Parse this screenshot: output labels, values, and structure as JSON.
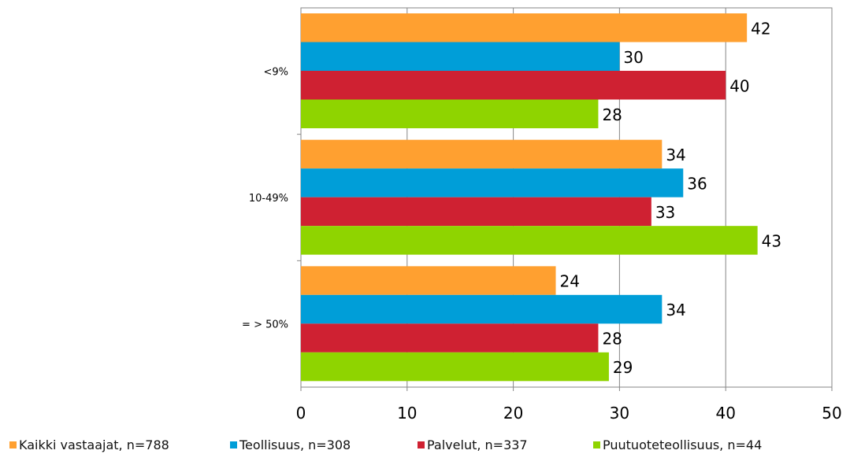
{
  "chart_data": {
    "type": "bar",
    "orientation": "horizontal",
    "categories": [
      "<9%",
      "10-49%",
      "= > 50%"
    ],
    "series": [
      {
        "name": "Kaikki vastaajat, n=788",
        "color": "#ffa030",
        "values": [
          42,
          34,
          24
        ],
        "labels": [
          "42",
          "34",
          "24"
        ]
      },
      {
        "name": "Teollisuus, n=308",
        "color": "#009ed8",
        "values": [
          30,
          36,
          34
        ],
        "labels": [
          "30",
          "36",
          "34"
        ]
      },
      {
        "name": "Palvelut, n=337",
        "color": "#cf2132",
        "values": [
          40,
          33,
          28
        ],
        "labels": [
          "40",
          "33",
          "28"
        ]
      },
      {
        "name": "Puutuoteteollisuus, n=44",
        "color": "#8fd400",
        "values": [
          28,
          43,
          29
        ],
        "labels": [
          "28",
          "43",
          "29"
        ]
      }
    ],
    "xlim": [
      0,
      50
    ],
    "xticks": [
      "0",
      "10",
      "20",
      "30",
      "40",
      "50"
    ],
    "grid": true,
    "legend_position": "bottom",
    "title": "",
    "xlabel": "",
    "ylabel": ""
  }
}
